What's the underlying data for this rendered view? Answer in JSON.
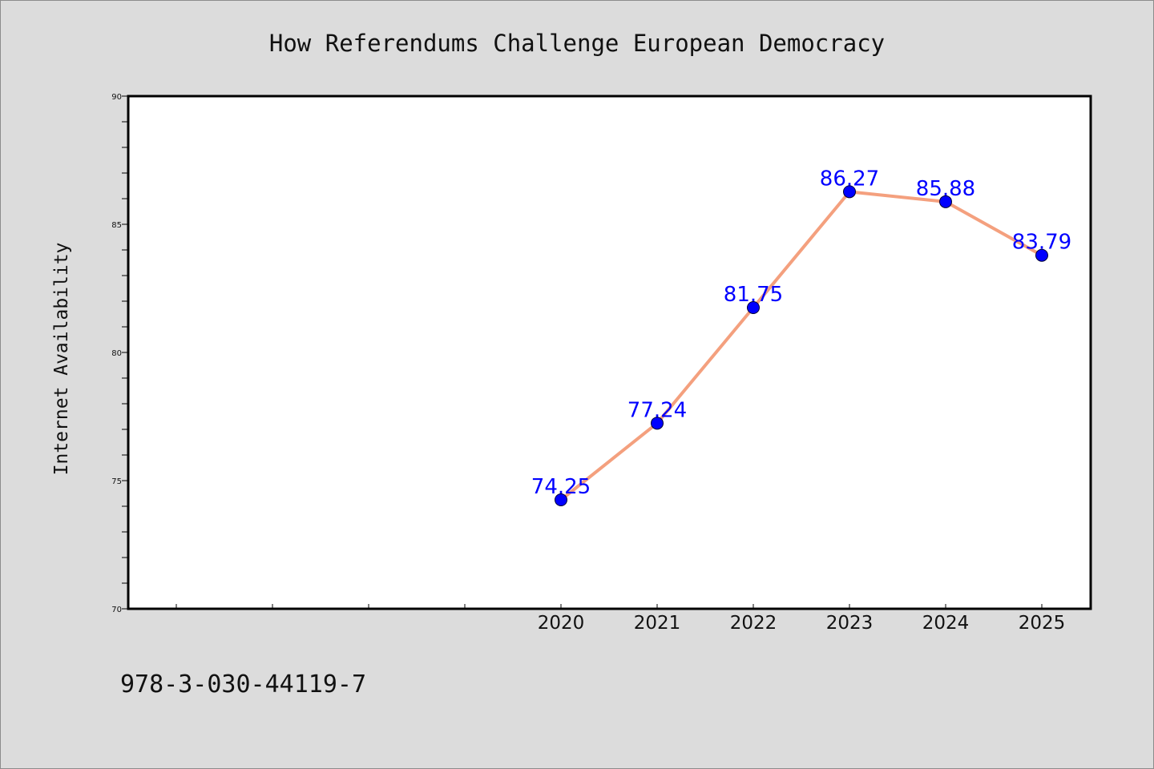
{
  "chart_data": {
    "type": "line",
    "title": "How Referendums Challenge European Democracy",
    "xlabel": "",
    "ylabel": "Internet Availability",
    "x": [
      "2020",
      "2021",
      "2022",
      "2023",
      "2024",
      "2025"
    ],
    "series": [
      {
        "values": [
          74.25,
          77.24,
          81.75,
          86.27,
          85.88,
          83.79
        ],
        "labels": [
          "74.25",
          "77.24",
          "81.75",
          "86.27",
          "85.88",
          "83.79"
        ]
      }
    ],
    "ylim": [
      70,
      90
    ],
    "y_ticks": [
      "70",
      "75",
      "80",
      "85",
      "90"
    ],
    "grid": false,
    "colors": {
      "line": "#f4a07e",
      "marker": "#0000ff",
      "data_label": "#0000ff",
      "plot_background": "#ffffff",
      "page_background": "#dcdcdc"
    }
  },
  "footer": {
    "code": "978-3-030-44119-7"
  }
}
